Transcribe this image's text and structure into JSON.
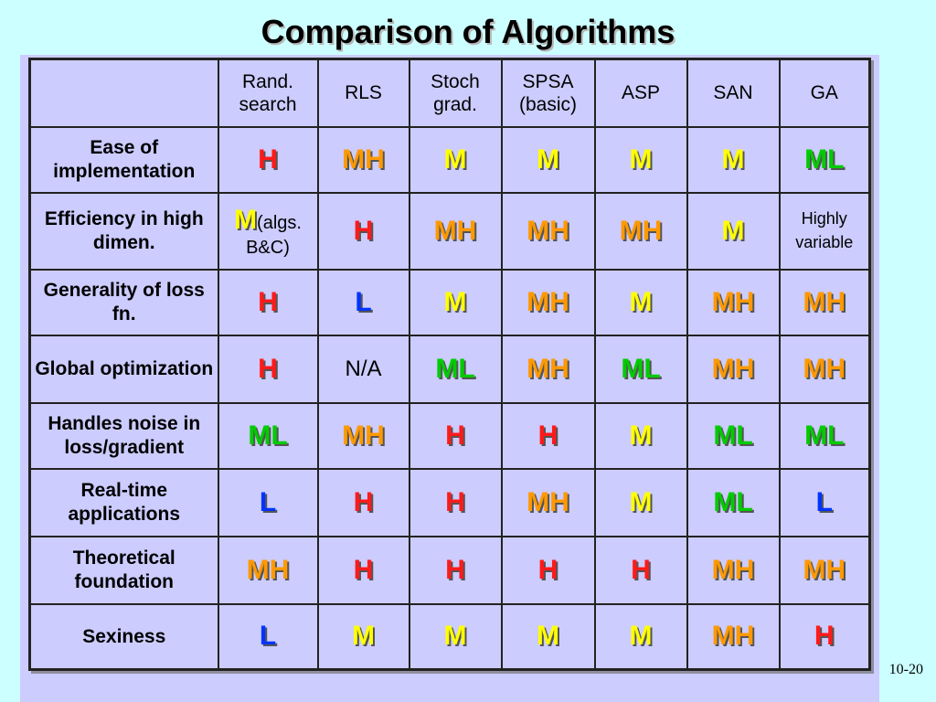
{
  "title": "Comparison of Algorithms",
  "page_number": "10-20",
  "colors": {
    "H": "#ff1a1a",
    "MH": "#ff9900",
    "M": "#ffff00",
    "ML": "#00cc00",
    "L": "#0033ff"
  },
  "table": {
    "corner": "",
    "columns": [
      "Rand. search",
      "RLS",
      "Stoch grad.",
      "SPSA (basic)",
      "ASP",
      "SAN",
      "GA"
    ],
    "rows": [
      {
        "label": "Ease of implementation",
        "cells": [
          {
            "value": "H"
          },
          {
            "value": "MH"
          },
          {
            "value": "M"
          },
          {
            "value": "M"
          },
          {
            "value": "M"
          },
          {
            "value": "M"
          },
          {
            "value": "ML"
          }
        ]
      },
      {
        "label": "Efficiency in high dimen.",
        "cells": [
          {
            "value": "M",
            "note": "(algs. B&C)"
          },
          {
            "value": "H"
          },
          {
            "value": "MH"
          },
          {
            "value": "MH"
          },
          {
            "value": "MH"
          },
          {
            "value": "M"
          },
          {
            "value": "Highly variable",
            "plain": true
          }
        ]
      },
      {
        "label": "Generality of loss fn.",
        "cells": [
          {
            "value": "H"
          },
          {
            "value": "L"
          },
          {
            "value": "M"
          },
          {
            "value": "MH"
          },
          {
            "value": "M"
          },
          {
            "value": "MH"
          },
          {
            "value": "MH"
          }
        ]
      },
      {
        "label": "Global optimization",
        "cells": [
          {
            "value": "H"
          },
          {
            "value": "N/A",
            "plain": true
          },
          {
            "value": "ML"
          },
          {
            "value": "MH"
          },
          {
            "value": "ML"
          },
          {
            "value": "MH"
          },
          {
            "value": "MH"
          }
        ]
      },
      {
        "label": "Handles noise in loss/gradient",
        "cells": [
          {
            "value": "ML"
          },
          {
            "value": "MH"
          },
          {
            "value": "H"
          },
          {
            "value": "H"
          },
          {
            "value": "M"
          },
          {
            "value": "ML"
          },
          {
            "value": "ML"
          }
        ]
      },
      {
        "label": "Real-time applications",
        "cells": [
          {
            "value": "L"
          },
          {
            "value": "H"
          },
          {
            "value": "H"
          },
          {
            "value": "MH"
          },
          {
            "value": "M"
          },
          {
            "value": "ML"
          },
          {
            "value": "L"
          }
        ]
      },
      {
        "label": "Theoretical foundation",
        "cells": [
          {
            "value": "MH"
          },
          {
            "value": "H"
          },
          {
            "value": "H"
          },
          {
            "value": "H"
          },
          {
            "value": "H"
          },
          {
            "value": "MH"
          },
          {
            "value": "MH"
          }
        ]
      },
      {
        "label": "Sexiness",
        "cells": [
          {
            "value": "L"
          },
          {
            "value": "M"
          },
          {
            "value": "M"
          },
          {
            "value": "M"
          },
          {
            "value": "M"
          },
          {
            "value": "MH"
          },
          {
            "value": "H"
          }
        ]
      }
    ]
  }
}
